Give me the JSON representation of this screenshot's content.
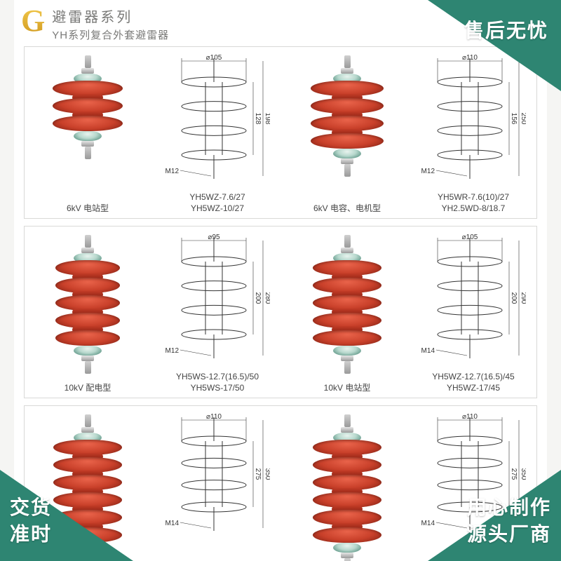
{
  "badges": {
    "tr": {
      "text": "售后无忧",
      "fill": "#2e8572"
    },
    "bl": {
      "line1": "交货",
      "line2": "准时",
      "fill": "#2e8572"
    },
    "br": {
      "line1": "用心制作",
      "line2": "源头厂商",
      "fill": "#2e8572"
    }
  },
  "header": {
    "mark": "G",
    "title_cn": "避雷器系列",
    "title_en": "YH系列复合外套避雷器"
  },
  "arrester_colors": {
    "shed": "#c9402a",
    "shed_hi": "#e9634a",
    "shed_dk": "#7e1f12",
    "cap": "#3f7e6d",
    "metal": "#9a9a9a"
  },
  "rows": [
    {
      "left": {
        "sheds": 3,
        "shed_width": 100,
        "diagram": {
          "top_dia": 105,
          "bolt": "M12",
          "h_body": 128,
          "h_total": 198
        },
        "photo_caption": "6kV 电站型",
        "diag_caption": "YH5WZ-7.6/27\nYH5WZ-10/27"
      },
      "right": {
        "sheds": 4,
        "shed_width": 104,
        "diagram": {
          "top_dia": 110,
          "bolt": "M12",
          "h_body": 156,
          "h_total": 250
        },
        "photo_caption": "6kV 电容、电机型",
        "diag_caption": "YH5WR-7.6(10)/27\nYH2.5WD-8/18.7"
      }
    },
    {
      "left": {
        "sheds": 5,
        "shed_width": 92,
        "diagram": {
          "top_dia": 95,
          "bolt": "M12",
          "h_body": 200,
          "h_total": 280
        },
        "photo_caption": "10kV 配电型",
        "diag_caption": "YH5WS-12.7(16.5)/50\nYH5WS-17/50"
      },
      "right": {
        "sheds": 5,
        "shed_width": 98,
        "diagram": {
          "top_dia": 105,
          "bolt": "M14",
          "h_body": 200,
          "h_total": 290
        },
        "photo_caption": "10kV 电站型",
        "diag_caption": "YH5WZ-12.7(16.5)/45\nYH5WZ-17/45"
      }
    },
    {
      "left": {
        "sheds": 6,
        "shed_width": 98,
        "diagram": {
          "top_dia": 110,
          "bolt": "M14",
          "h_body": 275,
          "h_total": 350
        },
        "photo_caption": "",
        "diag_caption": ""
      },
      "right": {
        "sheds": 6,
        "shed_width": 98,
        "diagram": {
          "top_dia": 110,
          "bolt": "M14",
          "h_body": 275,
          "h_total": 350
        },
        "photo_caption": "",
        "diag_caption": ""
      }
    }
  ]
}
